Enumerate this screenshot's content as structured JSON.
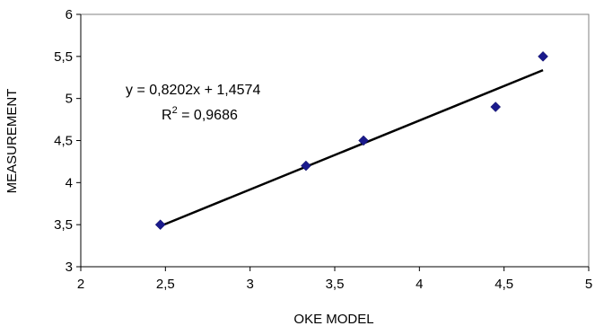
{
  "chart_data": {
    "type": "scatter",
    "xlabel": "OKE MODEL",
    "ylabel": "MEASUREMENT",
    "xlim": [
      2,
      5
    ],
    "ylim": [
      3,
      6
    ],
    "x_ticks": [
      "2",
      "2,5",
      "3",
      "3,5",
      "4",
      "4,5",
      "5"
    ],
    "y_ticks": [
      "3",
      "3,5",
      "4",
      "4,5",
      "5",
      "5,5",
      "6"
    ],
    "grid": "none",
    "series": [
      {
        "points": [
          {
            "x": 2.47,
            "y": 3.5
          },
          {
            "x": 3.33,
            "y": 4.2
          },
          {
            "x": 3.67,
            "y": 4.5
          },
          {
            "x": 4.45,
            "y": 4.9
          },
          {
            "x": 4.73,
            "y": 5.5
          }
        ],
        "marker_color": "#1a1a8c"
      }
    ],
    "trendline": {
      "slope": 0.8202,
      "intercept": 1.4574,
      "x_range": [
        2.47,
        4.73
      ],
      "equation_label": "y = 0,8202x + 1,4574",
      "r2_label_prefix": "R",
      "r2_label_sup": "2",
      "r2_label_rest": " = 0,9686"
    }
  }
}
